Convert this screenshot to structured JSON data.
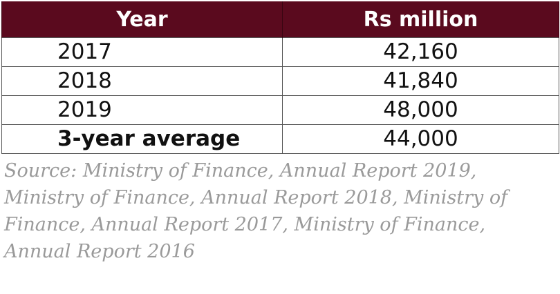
{
  "table": {
    "headers": [
      "Year",
      "Rs million"
    ],
    "rows": [
      {
        "year": "2017",
        "value": "42,160"
      },
      {
        "year": "2018",
        "value": "41,840"
      },
      {
        "year": "2019",
        "value": "48,000"
      },
      {
        "year": "3-year average",
        "value": "44,000"
      }
    ],
    "header_color": "#5a0a1e"
  },
  "source": "Source: Ministry of Finance, Annual Report 2019, Ministry of Finance, Annual Report 2018, Ministry of Finance, Annual Report 2017, Ministry of Finance, Annual Report 2016"
}
